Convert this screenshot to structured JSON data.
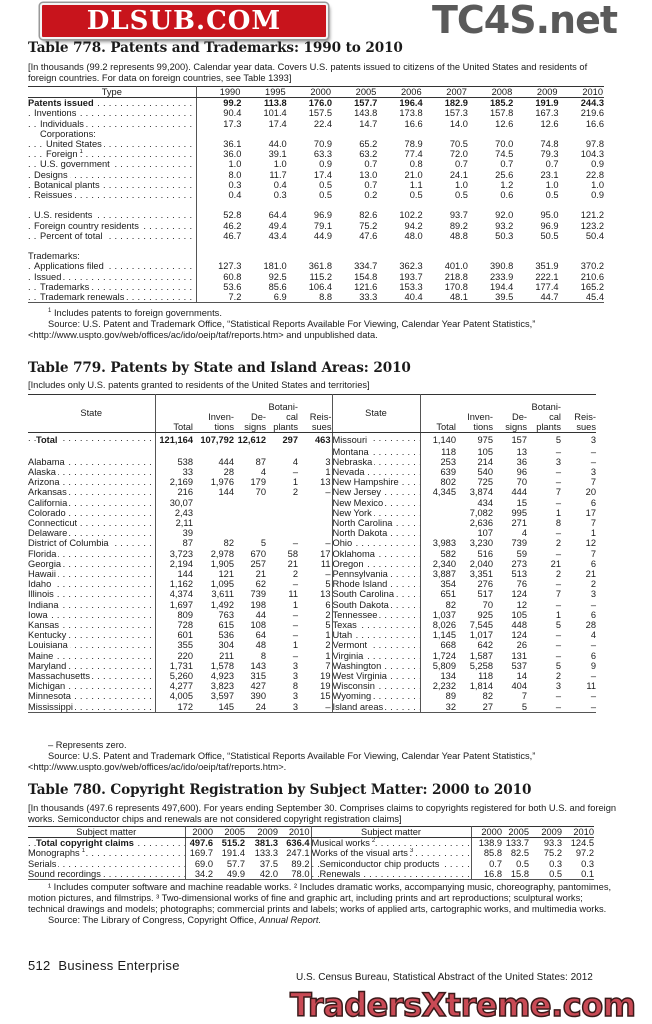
{
  "watermarks": {
    "top": "TC4S.net",
    "middle": "DLSUB.COM",
    "bottom": "TradersXtreme.com"
  },
  "t778": {
    "title": "Table 778. Patents and Trademarks: 1990 to 2010",
    "headnote": "[In thousands (99.2 represents 99,200). Calendar year data. Covers U.S. patents issued to citizens of the United States and residents of foreign countries. For data on foreign countries, see Table 1393]",
    "type_header": "Type",
    "years": [
      "1990",
      "1995",
      "2000",
      "2005",
      "2006",
      "2007",
      "2008",
      "2009",
      "2010"
    ],
    "rows": [
      {
        "label": "Patents issued",
        "indent": 0,
        "bold": true,
        "values": [
          "99.2",
          "113.8",
          "176.0",
          "157.7",
          "196.4",
          "182.9",
          "185.2",
          "191.9",
          "244.3"
        ]
      },
      {
        "label": "Inventions",
        "indent": 1,
        "values": [
          "90.4",
          "101.4",
          "157.5",
          "143.8",
          "173.8",
          "157.3",
          "157.8",
          "167.3",
          "219.6"
        ]
      },
      {
        "label": "Individuals",
        "indent": 2,
        "values": [
          "17.3",
          "17.4",
          "22.4",
          "14.7",
          "16.6",
          "14.0",
          "12.6",
          "12.6",
          "16.6"
        ]
      },
      {
        "label": "Corporations:",
        "indent": 2,
        "nodots": true,
        "values": []
      },
      {
        "label": "United States",
        "indent": 3,
        "values": [
          "36.1",
          "44.0",
          "70.9",
          "65.2",
          "78.9",
          "70.5",
          "70.0",
          "74.8",
          "97.8"
        ]
      },
      {
        "label": "Foreign",
        "sup": "1",
        "indent": 3,
        "values": [
          "36.0",
          "39.1",
          "63.3",
          "63.2",
          "77.4",
          "72.0",
          "74.5",
          "79.3",
          "104.3"
        ]
      },
      {
        "label": "U.S. government",
        "indent": 2,
        "values": [
          "1.0",
          "1.0",
          "0.9",
          "0.7",
          "0.8",
          "0.7",
          "0.7",
          "0.7",
          "0.9"
        ]
      },
      {
        "label": "Designs",
        "indent": 1,
        "values": [
          "8.0",
          "11.7",
          "17.4",
          "13.0",
          "21.0",
          "24.1",
          "25.6",
          "23.1",
          "22.8"
        ]
      },
      {
        "label": "Botanical plants",
        "indent": 1,
        "values": [
          "0.3",
          "0.4",
          "0.5",
          "0.7",
          "1.1",
          "1.0",
          "1.2",
          "1.0",
          "1.0"
        ]
      },
      {
        "label": "Reissues",
        "indent": 1,
        "values": [
          "0.4",
          "0.3",
          "0.5",
          "0.2",
          "0.5",
          "0.5",
          "0.6",
          "0.5",
          "0.9"
        ]
      },
      {
        "label": "",
        "values": []
      },
      {
        "label": "U.S. residents",
        "indent": 1,
        "values": [
          "52.8",
          "64.4",
          "96.9",
          "82.6",
          "102.2",
          "93.7",
          "92.0",
          "95.0",
          "121.2"
        ]
      },
      {
        "label": "Foreign country residents",
        "indent": 1,
        "values": [
          "46.2",
          "49.4",
          "79.1",
          "75.2",
          "94.2",
          "89.2",
          "93.2",
          "96.9",
          "123.2"
        ]
      },
      {
        "label": "Percent of total",
        "indent": 2,
        "values": [
          "46.7",
          "43.4",
          "44.9",
          "47.6",
          "48.0",
          "48.8",
          "50.3",
          "50.5",
          "50.4"
        ]
      },
      {
        "label": "",
        "values": []
      },
      {
        "label": "Trademarks:",
        "indent": 0,
        "nodots": true,
        "values": []
      },
      {
        "label": "Applications filed",
        "indent": 1,
        "values": [
          "127.3",
          "181.0",
          "361.8",
          "334.7",
          "362.3",
          "401.0",
          "390.8",
          "351.9",
          "370.2"
        ]
      },
      {
        "label": "Issued",
        "indent": 1,
        "values": [
          "60.8",
          "92.5",
          "115.2",
          "154.8",
          "193.7",
          "218.8",
          "233.9",
          "222.1",
          "210.6"
        ]
      },
      {
        "label": "Trademarks",
        "indent": 2,
        "values": [
          "53.6",
          "85.6",
          "106.4",
          "121.6",
          "153.3",
          "170.8",
          "194.4",
          "177.4",
          "165.2"
        ]
      },
      {
        "label": "Trademark renewals",
        "indent": 2,
        "values": [
          "7.2",
          "6.9",
          "8.8",
          "33.3",
          "40.4",
          "48.1",
          "39.5",
          "44.7",
          "45.4"
        ]
      }
    ],
    "footnote1": "Includes patents to foreign governments.",
    "source": "Source: U.S. Patent and Trademark Office, “Statistical Reports Available For Viewing, Calendar Year Patent Statistics,” <http://www.uspto.gov/web/offices/ac/ido/oeip/taf/reports.htm> and unpublished data."
  },
  "t779": {
    "title": "Table 779. Patents by State and Island Areas: 2010",
    "headnote": "[Includes only U.S. patents granted to residents of the United States and territories]",
    "headers": {
      "state": "State",
      "total": "Total",
      "inventions": "Inven-|tions",
      "designs": "De-|signs",
      "botanical": "Botani-|cal|plants",
      "reissues": "Reis-|sues"
    },
    "left": [
      {
        "state": "Total",
        "bold": true,
        "values": [
          "121,164",
          "107,792",
          "12,612",
          "297",
          "463"
        ]
      },
      {
        "state": "",
        "values": []
      },
      {
        "state": "Alabama",
        "values": [
          "538",
          "444",
          "87",
          "4",
          "3"
        ]
      },
      {
        "state": "Alaska",
        "values": [
          "33",
          "28",
          "4",
          "–",
          "1"
        ]
      },
      {
        "state": "Arizona",
        "values": [
          "2,169",
          "1,976",
          "179",
          "1",
          "13"
        ]
      },
      {
        "state": "Arkansas",
        "values": [
          "216",
          "144",
          "70",
          "2",
          "–"
        ]
      },
      {
        "state": "California",
        "values": [
          "30,07",
          "",
          "",
          "",
          ""
        ]
      },
      {
        "state": "Colorado",
        "values": [
          "2,43",
          "",
          "",
          "",
          ""
        ]
      },
      {
        "state": "Connecticut",
        "values": [
          "2,11",
          "",
          "",
          "",
          ""
        ]
      },
      {
        "state": "Delaware",
        "values": [
          "39",
          "",
          "",
          "",
          ""
        ]
      },
      {
        "state": "District of Columbia",
        "values": [
          "87",
          "82",
          "5",
          "–",
          "–"
        ]
      },
      {
        "state": "Florida",
        "values": [
          "3,723",
          "2,978",
          "670",
          "58",
          "17"
        ]
      },
      {
        "state": "Georgia",
        "values": [
          "2,194",
          "1,905",
          "257",
          "21",
          "11"
        ]
      },
      {
        "state": "Hawaii",
        "values": [
          "144",
          "121",
          "21",
          "2",
          "–"
        ]
      },
      {
        "state": "Idaho",
        "values": [
          "1,162",
          "1,095",
          "62",
          "–",
          "5"
        ]
      },
      {
        "state": "Illinois",
        "values": [
          "4,374",
          "3,611",
          "739",
          "11",
          "13"
        ]
      },
      {
        "state": "Indiana",
        "values": [
          "1,697",
          "1,492",
          "198",
          "1",
          "6"
        ]
      },
      {
        "state": "Iowa",
        "values": [
          "809",
          "763",
          "44",
          "–",
          "2"
        ]
      },
      {
        "state": "Kansas",
        "values": [
          "728",
          "615",
          "108",
          "–",
          "5"
        ]
      },
      {
        "state": "Kentucky",
        "values": [
          "601",
          "536",
          "64",
          "–",
          "1"
        ]
      },
      {
        "state": "Louisiana",
        "values": [
          "355",
          "304",
          "48",
          "1",
          "2"
        ]
      },
      {
        "state": "Maine",
        "values": [
          "220",
          "211",
          "8",
          "–",
          "1"
        ]
      },
      {
        "state": "Maryland",
        "values": [
          "1,731",
          "1,578",
          "143",
          "3",
          "7"
        ]
      },
      {
        "state": "Massachusetts",
        "values": [
          "5,260",
          "4,923",
          "315",
          "3",
          "19"
        ]
      },
      {
        "state": "Michigan",
        "values": [
          "4,277",
          "3,823",
          "427",
          "8",
          "19"
        ]
      },
      {
        "state": "Minnesota",
        "values": [
          "4,005",
          "3,597",
          "390",
          "3",
          "15"
        ]
      },
      {
        "state": "Mississippi",
        "values": [
          "172",
          "145",
          "24",
          "3",
          "–"
        ]
      }
    ],
    "right": [
      {
        "state": "Missouri",
        "values": [
          "1,140",
          "975",
          "157",
          "5",
          "3"
        ]
      },
      {
        "state": "Montana",
        "values": [
          "118",
          "105",
          "13",
          "–",
          "–"
        ]
      },
      {
        "state": "Nebraska",
        "values": [
          "253",
          "214",
          "36",
          "3",
          "–"
        ]
      },
      {
        "state": "Nevada",
        "values": [
          "639",
          "540",
          "96",
          "–",
          "3"
        ]
      },
      {
        "state": "New Hampshire",
        "values": [
          "802",
          "725",
          "70",
          "–",
          "7"
        ]
      },
      {
        "state": "New Jersey",
        "values": [
          "4,345",
          "3,874",
          "444",
          "7",
          "20"
        ]
      },
      {
        "state": "New Mexico",
        "values": [
          "",
          "434",
          "15",
          "–",
          "6"
        ]
      },
      {
        "state": "New York",
        "values": [
          "",
          "7,082",
          "995",
          "1",
          "17"
        ]
      },
      {
        "state": "North Carolina",
        "values": [
          "",
          "2,636",
          "271",
          "8",
          "7"
        ]
      },
      {
        "state": "North Dakota",
        "values": [
          "",
          "107",
          "4",
          "–",
          "1"
        ]
      },
      {
        "state": "Ohio",
        "values": [
          "3,983",
          "3,230",
          "739",
          "2",
          "12"
        ]
      },
      {
        "state": "Oklahoma",
        "values": [
          "582",
          "516",
          "59",
          "–",
          "7"
        ]
      },
      {
        "state": "Oregon",
        "values": [
          "2,340",
          "2,040",
          "273",
          "21",
          "6"
        ]
      },
      {
        "state": "Pennsylvania",
        "values": [
          "3,887",
          "3,351",
          "513",
          "2",
          "21"
        ]
      },
      {
        "state": "Rhode Island",
        "values": [
          "354",
          "276",
          "76",
          "–",
          "2"
        ]
      },
      {
        "state": "South Carolina",
        "values": [
          "651",
          "517",
          "124",
          "7",
          "3"
        ]
      },
      {
        "state": "South Dakota",
        "values": [
          "82",
          "70",
          "12",
          "–",
          "–"
        ]
      },
      {
        "state": "Tennessee",
        "values": [
          "1,037",
          "925",
          "105",
          "1",
          "6"
        ]
      },
      {
        "state": "Texas",
        "values": [
          "8,026",
          "7,545",
          "448",
          "5",
          "28"
        ]
      },
      {
        "state": "Utah",
        "values": [
          "1,145",
          "1,017",
          "124",
          "–",
          "4"
        ]
      },
      {
        "state": "Vermont",
        "values": [
          "668",
          "642",
          "26",
          "–",
          "–"
        ]
      },
      {
        "state": "Virginia",
        "values": [
          "1,724",
          "1,587",
          "131",
          "–",
          "6"
        ]
      },
      {
        "state": "Washington",
        "values": [
          "5,809",
          "5,258",
          "537",
          "5",
          "9"
        ]
      },
      {
        "state": "West Virginia",
        "values": [
          "134",
          "118",
          "14",
          "2",
          "–"
        ]
      },
      {
        "state": "Wisconsin",
        "values": [
          "2,232",
          "1,814",
          "404",
          "3",
          "11"
        ]
      },
      {
        "state": "Wyoming",
        "values": [
          "89",
          "82",
          "7",
          "–",
          "–"
        ]
      },
      {
        "state": "Island areas",
        "values": [
          "32",
          "27",
          "5",
          "–",
          "–"
        ]
      }
    ],
    "note": "– Represents zero.",
    "source": "Source: U.S. Patent and Trademark Office, “Statistical Reports Available For Viewing, Calendar Year Patent Statistics,” <http://www.uspto.gov/web/offices/ac/ido/oeip/taf/reports.htm>."
  },
  "t780": {
    "title": "Table 780. Copyright Registration by Subject Matter: 2000 to 2010",
    "headnote": "[In thousands (497.6 represents 497,600). For years ending September 30. Comprises claims to copyrights registered for both U.S. and foreign works. Semiconductor chips and renewals are not considered copyright registration claims]",
    "subject_header": "Subject matter",
    "years": [
      "2000",
      "2005",
      "2009",
      "2010"
    ],
    "left": [
      {
        "label": "Total copyright claims",
        "bold": true,
        "indent": 1,
        "values": [
          "497.6",
          "515.2",
          "381.3",
          "636.4"
        ]
      },
      {
        "label": "Monographs",
        "sup": "1",
        "indent": 0,
        "values": [
          "169.7",
          "191.4",
          "133.3",
          "247.1"
        ]
      },
      {
        "label": "Serials",
        "indent": 0,
        "values": [
          "69.0",
          "57.7",
          "37.5",
          "89.2"
        ]
      },
      {
        "label": "Sound recordings",
        "indent": 0,
        "values": [
          "34.2",
          "49.9",
          "42.0",
          "78.0"
        ]
      }
    ],
    "right": [
      {
        "label": "Musical works",
        "sup": "2",
        "indent": 0,
        "values": [
          "138.9",
          "133.7",
          "93.3",
          "124.5"
        ]
      },
      {
        "label": "Works of the visual arts",
        "sup": "3",
        "indent": 0,
        "values": [
          "85.8",
          "82.5",
          "75.2",
          "97.2"
        ]
      },
      {
        "label": "Semiconductor chip products",
        "indent": 1,
        "values": [
          "0.7",
          "0.5",
          "0.3",
          "0.3"
        ]
      },
      {
        "label": "Renewals",
        "indent": 1,
        "values": [
          "16.8",
          "15.8",
          "0.5",
          "0.1"
        ]
      }
    ],
    "footnotes": "¹ Includes computer software and machine readable works. ² Includes dramatic works, accompanying music, choreography, pantomimes, motion pictures, and filmstrips. ³ Two-dimensional works of fine and graphic art, including prints and art reproductions; sculptural works; technical drawings and models; photographs; commercial prints and labels; works of applied arts, cartographic works, and multimedia works.",
    "source_prefix": "Source: The Library of Congress, Copyright Office, ",
    "source_title": "Annual Report."
  },
  "footer": {
    "page": "512  Business Enterprise",
    "publication": "U.S. Census Bureau, Statistical Abstract of the United States: 2012"
  }
}
